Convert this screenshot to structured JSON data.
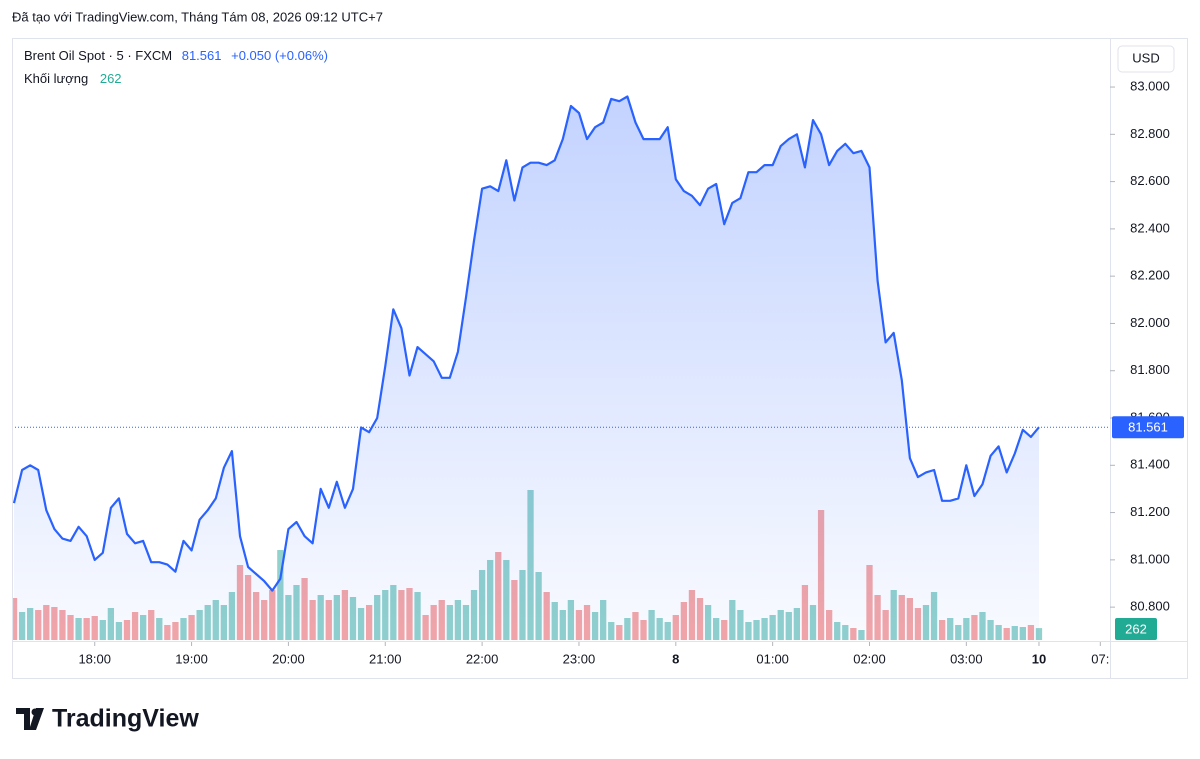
{
  "credit": "Đã tạo với TradingView.com, Tháng Tám 08, 2026 09:12 UTC+7",
  "logo": "TradingView",
  "chart_data": {
    "type": "area",
    "title": "Brent Oil Spot · 5 · FXCM",
    "change": "+0.050 (+0.06%)",
    "currency": "USD",
    "ylim": [
      80.661,
      83.199
    ],
    "yticks": [
      {
        "value": 80.8,
        "label": "80.800"
      },
      {
        "value": 81.0,
        "label": "81.000"
      },
      {
        "value": 81.2,
        "label": "81.200"
      },
      {
        "value": 81.4,
        "label": "81.400"
      },
      {
        "value": 81.6,
        "label": "81.600"
      },
      {
        "value": 81.8,
        "label": "81.800"
      },
      {
        "value": 82.0,
        "label": "82.000"
      },
      {
        "value": 82.2,
        "label": "82.200"
      },
      {
        "value": 82.4,
        "label": "82.400"
      },
      {
        "value": 82.6,
        "label": "82.600"
      },
      {
        "value": 82.8,
        "label": "82.800"
      },
      {
        "value": 83.0,
        "label": "83.000"
      }
    ],
    "y2lim": [
      0,
      13200
    ],
    "xlim": [
      -0.25,
      135.8
    ],
    "xticks": [
      {
        "value": 10,
        "label": "18:00"
      },
      {
        "value": 22,
        "label": "19:00"
      },
      {
        "value": 34,
        "label": "20:00"
      },
      {
        "value": 46,
        "label": "21:00"
      },
      {
        "value": 58,
        "label": "22:00"
      },
      {
        "value": 70,
        "label": "23:00"
      },
      {
        "value": 82,
        "label": "8"
      },
      {
        "value": 94,
        "label": "01:00"
      },
      {
        "value": 106,
        "label": "02:00"
      },
      {
        "value": 118,
        "label": "03:00"
      },
      {
        "value": 127,
        "label": "10"
      },
      {
        "value": 134.6,
        "label": "07:"
      }
    ],
    "series": [
      {
        "name": "Brent Oil Spot",
        "color": "#2962ff",
        "values": [
          81.24,
          81.38,
          81.4,
          81.38,
          81.21,
          81.13,
          81.09,
          81.08,
          81.14,
          81.1,
          81.0,
          81.03,
          81.22,
          81.26,
          81.11,
          81.07,
          81.08,
          80.99,
          80.99,
          80.98,
          80.95,
          81.08,
          81.04,
          81.17,
          81.21,
          81.26,
          81.39,
          81.46,
          81.1,
          80.97,
          80.94,
          80.91,
          80.87,
          80.92,
          81.13,
          81.16,
          81.1,
          81.07,
          81.3,
          81.22,
          81.33,
          81.22,
          81.3,
          81.56,
          81.54,
          81.6,
          81.82,
          82.06,
          81.98,
          81.78,
          81.9,
          81.87,
          81.84,
          81.77,
          81.77,
          81.88,
          82.11,
          82.35,
          82.57,
          82.58,
          82.56,
          82.69,
          82.52,
          82.66,
          82.68,
          82.68,
          82.67,
          82.69,
          82.78,
          82.92,
          82.89,
          82.78,
          82.83,
          82.85,
          82.95,
          82.94,
          82.96,
          82.85,
          82.78,
          82.78,
          82.78,
          82.83,
          82.61,
          82.56,
          82.54,
          82.5,
          82.57,
          82.59,
          82.42,
          82.51,
          82.53,
          82.64,
          82.64,
          82.67,
          82.67,
          82.75,
          82.78,
          82.8,
          82.66,
          82.86,
          82.8,
          82.67,
          82.73,
          82.76,
          82.72,
          82.73,
          82.66,
          82.18,
          81.92,
          81.96,
          81.76,
          81.43,
          81.35,
          81.37,
          81.38,
          81.25,
          81.25,
          81.26,
          81.4,
          81.27,
          81.32,
          81.44,
          81.48,
          81.37,
          81.45,
          81.55,
          81.52,
          81.561
        ]
      },
      {
        "name": "Khối lượng",
        "axis": "y2",
        "up_color": "#92d2cc",
        "down_color": "#f5a6a6",
        "value_color": "#22ab94",
        "values": [
          924,
          616,
          704,
          660,
          770,
          726,
          660,
          550,
          484,
          484,
          528,
          440,
          704,
          396,
          440,
          616,
          550,
          660,
          484,
          330,
          396,
          484,
          550,
          660,
          770,
          880,
          770,
          1056,
          1650,
          1430,
          1056,
          880,
          1100,
          1980,
          990,
          1210,
          1364,
          880,
          990,
          880,
          990,
          1100,
          946,
          704,
          770,
          990,
          1100,
          1210,
          1100,
          1144,
          1056,
          550,
          770,
          880,
          770,
          880,
          770,
          1100,
          1540,
          1760,
          1936,
          1760,
          1320,
          1540,
          3300,
          1496,
          1056,
          836,
          660,
          880,
          660,
          770,
          616,
          880,
          396,
          330,
          484,
          616,
          440,
          660,
          484,
          396,
          550,
          836,
          1100,
          924,
          770,
          484,
          440,
          880,
          660,
          396,
          440,
          484,
          550,
          660,
          616,
          704,
          1210,
          770,
          2860,
          660,
          396,
          330,
          264,
          220,
          1650,
          990,
          660,
          1100,
          990,
          924,
          704,
          770,
          1056,
          440,
          484,
          330,
          484,
          550,
          616,
          440,
          330,
          264,
          308,
          286,
          330,
          262
        ]
      }
    ]
  }
}
